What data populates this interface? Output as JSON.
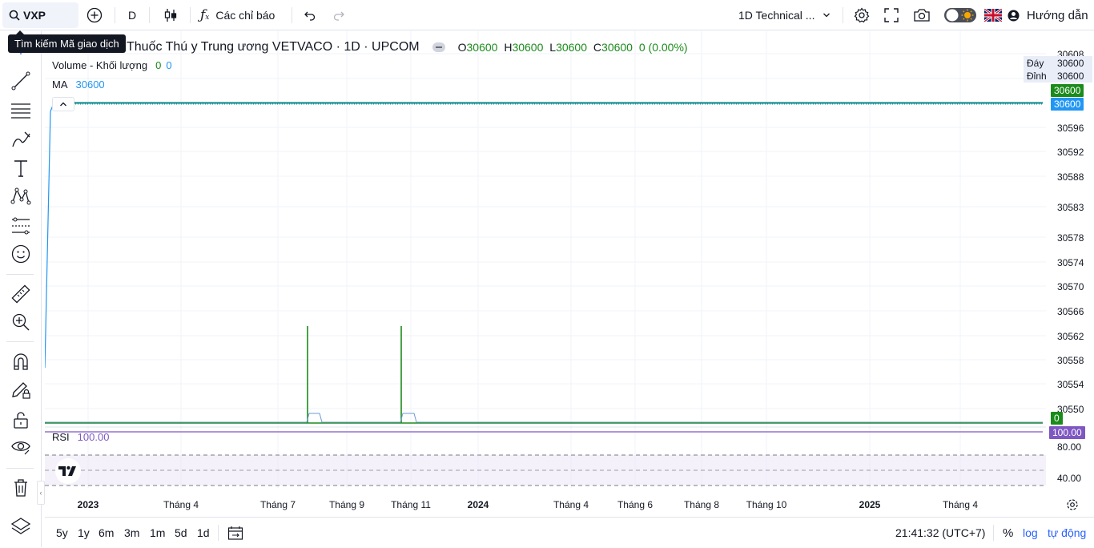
{
  "toolbar": {
    "symbol": "VXP",
    "interval": "D",
    "indicators_label": "Các chỉ báo",
    "layout_name": "1D Technical ...",
    "help_label": "Hướng dẫn",
    "colors": {
      "accent": "#2962ff",
      "border": "#e0e3eb"
    }
  },
  "tooltip": "Tìm kiếm Mã giao dịch",
  "legend": {
    "title": "Thuốc Thú y Trung ương VETVACO · 1D · UPCOM",
    "o_label": "O",
    "o_value": "30600",
    "h_label": "H",
    "h_value": "30600",
    "l_label": "L",
    "l_value": "30600",
    "c_label": "C",
    "c_value": "30600",
    "change": "0 (0.00%)",
    "volume_label": "Volume - Khối lượng",
    "volume_v1": "0",
    "volume_v2": "0",
    "ma_label": "MA",
    "ma_value": "30600",
    "rsi_label": "RSI",
    "rsi_value": "100.00"
  },
  "price_scale": {
    "labels": [
      "30608",
      "30596",
      "30592",
      "30588",
      "30583",
      "30578",
      "30574",
      "30570",
      "30566",
      "30562",
      "30558",
      "30554",
      "30550"
    ],
    "day_label": "Đáy",
    "day_value": "30600",
    "peak_label": "Đỉnh",
    "peak_value": "30600",
    "last_price_tag": "30600",
    "ma_tag": "30600",
    "volume_tag": "0",
    "rsi_tag": "100.00",
    "rsi_labels": [
      "80.00",
      "40.00"
    ],
    "colors": {
      "green": "#089981",
      "green_dark": "#1b8b1b",
      "blue": "#2196f3",
      "purple": "#7e57c2"
    }
  },
  "time_axis": [
    {
      "label": "2023",
      "year": true
    },
    {
      "label": "Tháng 4",
      "year": false
    },
    {
      "label": "Tháng 7",
      "year": false
    },
    {
      "label": "Tháng 9",
      "year": false
    },
    {
      "label": "Tháng 11",
      "year": false
    },
    {
      "label": "2024",
      "year": true
    },
    {
      "label": "Tháng 4",
      "year": false
    },
    {
      "label": "Tháng 6",
      "year": false
    },
    {
      "label": "Tháng 8",
      "year": false
    },
    {
      "label": "Tháng 10",
      "year": false
    },
    {
      "label": "2025",
      "year": true
    },
    {
      "label": "Tháng 4",
      "year": false
    }
  ],
  "bottom": {
    "ranges": [
      "5y",
      "1y",
      "6m",
      "3m",
      "1m",
      "5d",
      "1d"
    ],
    "clock": "21:41:32 (UTC+7)",
    "percent": "%",
    "log": "log",
    "auto": "tự động"
  }
}
